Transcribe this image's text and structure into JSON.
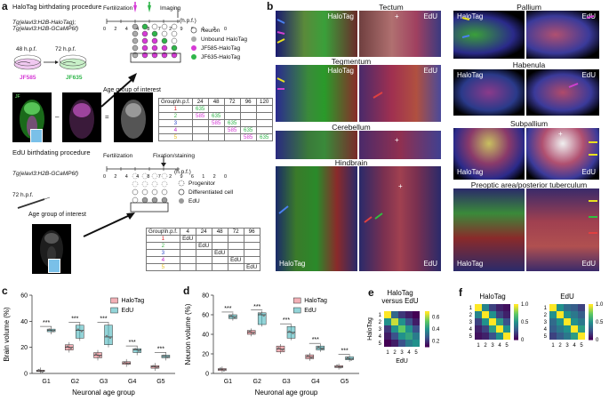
{
  "panel_letters": [
    "a",
    "b",
    "c",
    "d",
    "e",
    "f"
  ],
  "a": {
    "title": "HaloTag birthdating procedure",
    "genotype": "Tg(elavl3:H2B-HaloTag);\nTg(elavl3:H2B-GCaMP6f)",
    "t48": "48 h.p.f.",
    "t72": "72 h.p.f.",
    "jf585": "JF585",
    "jf635": "JF635",
    "fert": "Fertilization",
    "imaging": "Imaging",
    "hpf": "(h.p.f.)",
    "timeline_ticks": [
      "0",
      "24",
      "48",
      "72",
      "96",
      "120"
    ],
    "legend1": [
      "Neuron",
      "Unbound HaloTag",
      "JF585-HaloTag",
      "JF635-HaloTag"
    ],
    "age_group": "Age group of interest",
    "table1_header": [
      "Group\\h.p.f.",
      "24",
      "48",
      "72",
      "96",
      "120"
    ],
    "table1_rows": [
      [
        "1",
        "635",
        "",
        "",
        "",
        ""
      ],
      [
        "2",
        "585",
        "635",
        "",
        "",
        ""
      ],
      [
        "3",
        "",
        "585",
        "635",
        "",
        ""
      ],
      [
        "4",
        "",
        "",
        "585",
        "635",
        ""
      ],
      [
        "5",
        "",
        "",
        "",
        "585",
        "635"
      ]
    ],
    "edu_title": "EdU birthdating procedure",
    "edu_genotype": "Tg(elavl3:H2B-GCaMP6f)",
    "t72b": "72 h.p.f.",
    "fixation": "Fixation/staining",
    "legend2": [
      "Progenitor",
      "Differentiated cell",
      "EdU"
    ],
    "age_group2": "Age group of interest",
    "table2_header": [
      "Group\\h.p.f.",
      "4",
      "24",
      "48",
      "72",
      "96"
    ],
    "table2_rows": [
      [
        "1",
        "EdU",
        "",
        "",
        "",
        ""
      ],
      [
        "2",
        "",
        "EdU",
        "",
        "",
        ""
      ],
      [
        "3",
        "",
        "",
        "EdU",
        "",
        ""
      ],
      [
        "4",
        "",
        "",
        "",
        "EdU",
        ""
      ],
      [
        "5",
        "",
        "",
        "",
        "",
        "EdU"
      ]
    ],
    "group_colors": [
      "#e02020",
      "#3cb54a",
      "#2a48c8",
      "#c020c8",
      "#e8c020"
    ],
    "jf585_color": "#d63ad6",
    "jf635_color": "#2fb54a"
  },
  "b": {
    "regions": [
      "Tectum",
      "Tegmentum",
      "Cerebellum",
      "Hindbrain",
      "Pallium",
      "Habenula",
      "Subpallium",
      "Preoptic area/posterior tuberculum"
    ],
    "halotag": "HaloTag",
    "edu": "EdU",
    "plus": "+"
  },
  "chart_data": [
    {
      "type": "box",
      "panel": "c",
      "ylabel": "Brain volume (%)",
      "xlabel": "Neuronal age group",
      "categories": [
        "G1",
        "G2",
        "G3",
        "G4",
        "G5"
      ],
      "ylim": [
        0,
        60
      ],
      "yticks": [
        "0",
        "20",
        "40",
        "60"
      ],
      "significance": [
        "***",
        "***",
        "***",
        "***",
        "***"
      ],
      "series": [
        {
          "name": "HaloTag",
          "color": "#e8707a",
          "medians": [
            2,
            20,
            14,
            8,
            5
          ],
          "q1": [
            1.5,
            18,
            12,
            7,
            4
          ],
          "q3": [
            2.5,
            22,
            16,
            9,
            6
          ]
        },
        {
          "name": "EdU",
          "color": "#3ab0b8",
          "medians": [
            33,
            33,
            28,
            18,
            13
          ],
          "q1": [
            32,
            27,
            22,
            16,
            12
          ],
          "q3": [
            34,
            37,
            37,
            19,
            14
          ]
        }
      ]
    },
    {
      "type": "box",
      "panel": "d",
      "ylabel": "Neuron volume (%)",
      "xlabel": "Neuronal age group",
      "categories": [
        "G1",
        "G2",
        "G3",
        "G4",
        "G5"
      ],
      "ylim": [
        0,
        80
      ],
      "yticks": [
        "0",
        "20",
        "40",
        "60",
        "80"
      ],
      "significance": [
        "***",
        "***",
        "***",
        "***",
        "***"
      ],
      "series": [
        {
          "name": "HaloTag",
          "color": "#e8707a",
          "medians": [
            4,
            42,
            25,
            17,
            7
          ],
          "q1": [
            3,
            40,
            22,
            15,
            6
          ],
          "q3": [
            5,
            44,
            28,
            19,
            8
          ]
        },
        {
          "name": "EdU",
          "color": "#3ab0b8",
          "medians": [
            58,
            60,
            42,
            26,
            15
          ],
          "q1": [
            56,
            50,
            36,
            24,
            14
          ],
          "q3": [
            60,
            62,
            48,
            28,
            17
          ]
        }
      ]
    },
    {
      "type": "heatmap",
      "panel": "e",
      "title": "HaloTag\nversus EdU",
      "ylabel": "HaloTag",
      "xlabel": "EdU",
      "ticks": [
        "1",
        "2",
        "3",
        "4",
        "5"
      ],
      "colorbar": [
        "0.2",
        "0.4",
        "0.6"
      ],
      "matrix": [
        [
          0.7,
          0.3,
          0.2,
          0.15,
          0.1
        ],
        [
          0.4,
          0.65,
          0.4,
          0.25,
          0.15
        ],
        [
          0.2,
          0.4,
          0.55,
          0.4,
          0.25
        ],
        [
          0.15,
          0.25,
          0.4,
          0.45,
          0.35
        ],
        [
          0.1,
          0.15,
          0.25,
          0.35,
          0.4
        ]
      ]
    },
    {
      "type": "heatmap",
      "panel": "f",
      "ylabel": "",
      "titles": [
        "HaloTag",
        "EdU"
      ],
      "ticks": [
        "1",
        "2",
        "3",
        "4",
        "5"
      ],
      "colorbar": [
        "0",
        "0.5",
        "1.0"
      ],
      "matrices": [
        [
          [
            1.0,
            0.45,
            0.2,
            0.1,
            0.05
          ],
          [
            0.45,
            1.0,
            0.5,
            0.2,
            0.1
          ],
          [
            0.2,
            0.5,
            1.0,
            0.55,
            0.25
          ],
          [
            0.1,
            0.2,
            0.55,
            1.0,
            0.5
          ],
          [
            0.05,
            0.1,
            0.25,
            0.5,
            1.0
          ]
        ],
        [
          [
            1.0,
            0.5,
            0.35,
            0.3,
            0.2
          ],
          [
            0.5,
            1.0,
            0.5,
            0.4,
            0.3
          ],
          [
            0.35,
            0.5,
            1.0,
            0.5,
            0.4
          ],
          [
            0.3,
            0.4,
            0.5,
            1.0,
            0.55
          ],
          [
            0.2,
            0.3,
            0.4,
            0.55,
            1.0
          ]
        ]
      ]
    }
  ]
}
